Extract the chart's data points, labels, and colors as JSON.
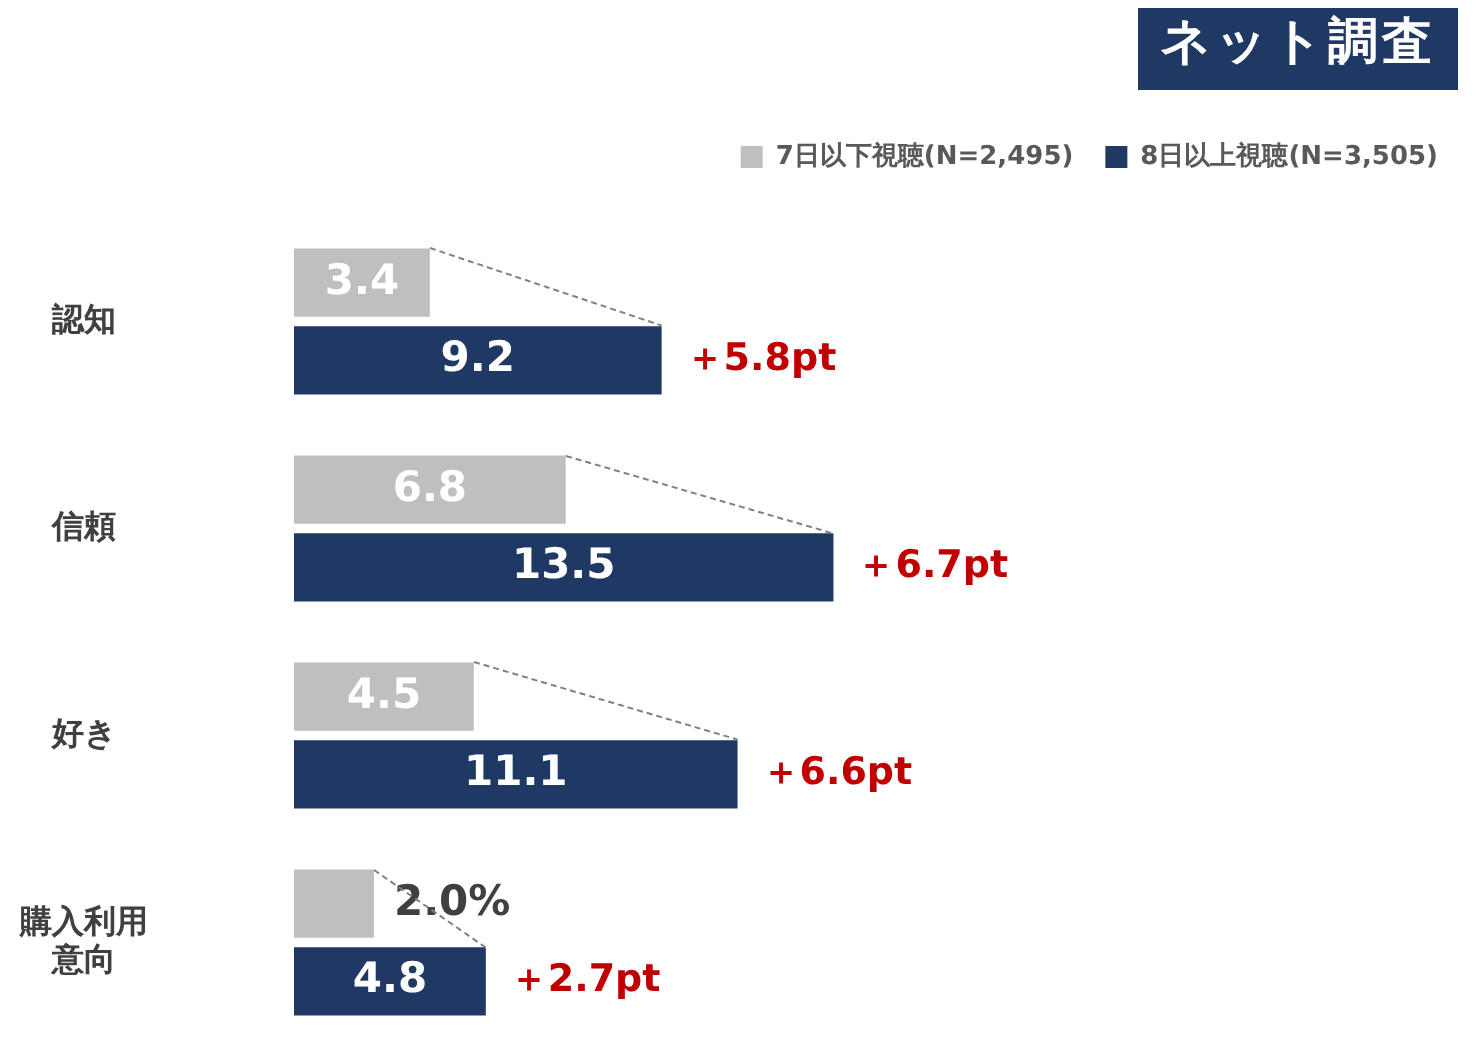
{
  "chart_data": {
    "type": "bar",
    "orientation": "horizontal",
    "title": "ネット調査",
    "categories": [
      "認知",
      "信頼",
      "好き",
      "購入利用意向"
    ],
    "series": [
      {
        "name": "7日以下視聴(N=2,495)",
        "color": "#bfbfbf",
        "values": [
          3.4,
          6.8,
          4.5,
          2.0
        ],
        "value_labels": [
          "3.4",
          "6.8",
          "4.5",
          "2.0%"
        ]
      },
      {
        "name": "8日以上視聴(N=3,505)",
        "color": "#1f3864",
        "values": [
          9.2,
          13.5,
          11.1,
          4.8
        ],
        "value_labels": [
          "9.2",
          "13.5",
          "11.1",
          "4.8"
        ]
      }
    ],
    "annotations": [
      {
        "text": "＋5.8pt",
        "x": 9.2,
        "y": "認知"
      },
      {
        "text": "＋6.7pt",
        "x": 13.5,
        "y": "信頼"
      },
      {
        "text": "＋6.6pt",
        "x": 11.1,
        "y": "好き"
      },
      {
        "text": "＋2.7pt",
        "x": 4.8,
        "y": "購入利用意向"
      }
    ],
    "legend": "top right",
    "tick_labels": "y"
  }
}
